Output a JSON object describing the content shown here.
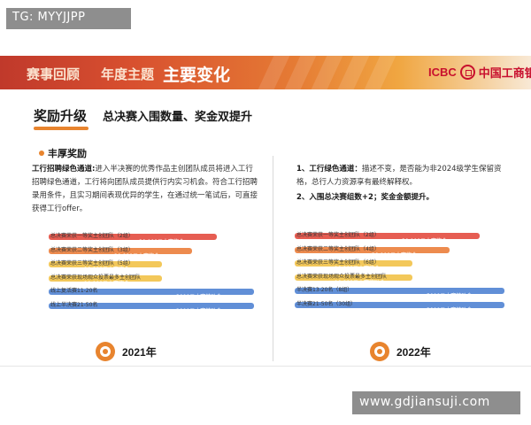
{
  "watermark_top": "TG: MYYJJPP",
  "watermark_bottom": "www.gdjiansuji.com",
  "banner": {
    "crumb_1": "赛事回顾",
    "crumb_2": "年度主题",
    "active": "主要变化",
    "logo_text": "ICBC",
    "logo_cn": "中国工商银"
  },
  "section": {
    "title": "奖励升级",
    "subtitle": "总决赛入围数量、奖金双提升",
    "bullet": "丰厚奖励"
  },
  "left": {
    "para_bold": "工行招聘绿色通道:",
    "para_text": "进入半决赛的优秀作品主创团队成员将进入工行招聘绿色通道，工行将向团队成员提供行内实习机会。符合工行招聘录用条件，且实习期间表现优异的学生，在通过统一笔试后，可直接获得工行offer。",
    "year": "2021年",
    "rows": [
      {
        "label": "总决赛荣获一等奖主创团队（2组）",
        "amount": "30,000元大赛奖金",
        "color": "#e2473a",
        "fill": 0.82
      },
      {
        "label": "总决赛荣获二等奖主创团队（3组）",
        "amount": "20,000元大赛奖金",
        "color": "#ea7b36",
        "fill": 0.7
      },
      {
        "label": "总决赛荣获三等奖主创团队（5组）",
        "amount": "10,000元大赛奖金",
        "color": "#f1c043",
        "fill": 0.55
      },
      {
        "label": "总决赛荣获现场观众投票最多主创团队",
        "amount": "10,000元大赛奖金",
        "color": "#f1c043",
        "fill": 0.55
      },
      {
        "label": "线上复活赛11-20名",
        "amount": "3000元大赛鼓励金",
        "color": "#4b7fd1",
        "fill": 1.0
      },
      {
        "label": "线上半决赛21-50名",
        "amount": "2000元大赛鼓励金",
        "color": "#4b7fd1",
        "fill": 1.0
      }
    ]
  },
  "right": {
    "para_1_bold": "1、工行绿色通道：",
    "para_1_text": "描述不变，是否能为非2024级学生保留资格，总行人力资源享有最终解释权。",
    "para_2": "2、入围总决赛组数+2；奖金金额提升。",
    "year": "2022年",
    "rows": [
      {
        "label": "总决赛荣获一等奖主创团队（2组）",
        "amount": "30,000元大赛奖金",
        "color": "#e2473a",
        "fill": 0.88
      },
      {
        "label": "总决赛荣获二等奖主创团队（4组）",
        "amount": "20,000元大赛奖金",
        "color": "#ea7b36",
        "fill": 0.74
      },
      {
        "label": "总决赛荣获三等奖主创团队（6组）",
        "amount": "10,000元大赛奖金",
        "color": "#f1c043",
        "fill": 0.56
      },
      {
        "label": "总决赛荣获现场观众投票最多主创团队",
        "amount": "10,000元大赛奖励金",
        "color": "#f1c043",
        "fill": 0.56
      },
      {
        "label": "半决赛13-20名（8组）",
        "amount": "5000元大赛鼓励金",
        "color": "#4b7fd1",
        "fill": 1.0
      },
      {
        "label": "半决赛21-50名（30组）",
        "amount": "3000元大赛鼓励金",
        "color": "#4b7fd1",
        "fill": 1.0
      }
    ]
  }
}
